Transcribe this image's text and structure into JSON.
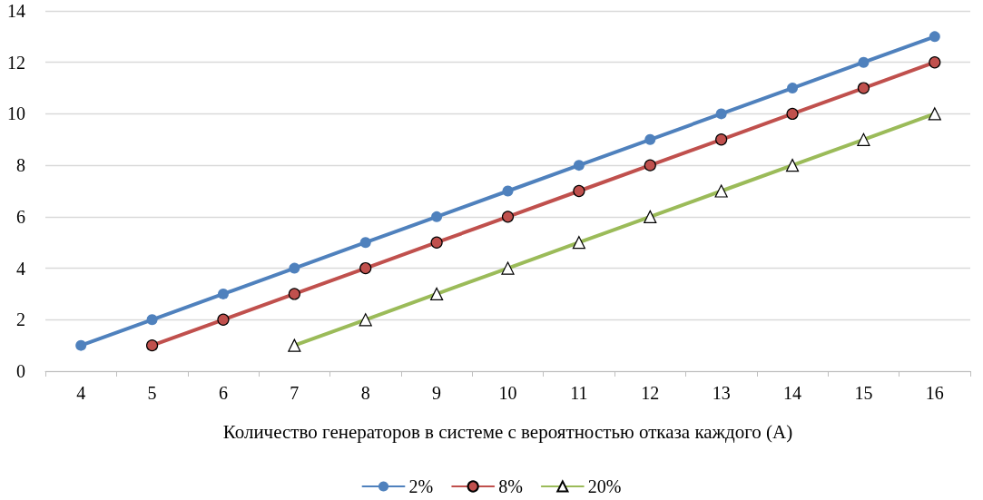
{
  "chart_data": {
    "type": "line",
    "xlabel": "Количество генераторов в системе с вероятностью отказа каждого (А)",
    "categories": [
      "4",
      "5",
      "6",
      "7",
      "8",
      "9",
      "10",
      "11",
      "12",
      "13",
      "14",
      "15",
      "16"
    ],
    "series": [
      {
        "name": "2%",
        "color": "#4f81bd",
        "marker": "circle",
        "values": [
          1,
          2,
          3,
          4,
          5,
          6,
          7,
          8,
          9,
          10,
          11,
          12,
          13
        ]
      },
      {
        "name": "8%",
        "color": "#c0504d",
        "marker": "circle",
        "values": [
          null,
          1,
          2,
          3,
          4,
          5,
          6,
          7,
          8,
          9,
          10,
          11,
          12
        ]
      },
      {
        "name": "20%",
        "color": "#9bbb59",
        "marker": "triangle",
        "values": [
          null,
          null,
          null,
          1,
          2,
          3,
          4,
          5,
          6,
          7,
          8,
          9,
          10
        ]
      }
    ],
    "ylim": [
      0,
      14
    ],
    "yticks": [
      0,
      2,
      4,
      6,
      8,
      10,
      12,
      14
    ],
    "grid": "y",
    "legend": "bottom"
  }
}
